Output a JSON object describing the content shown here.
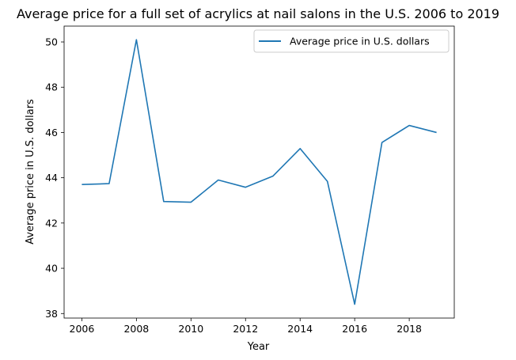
{
  "chart_data": {
    "type": "line",
    "title": "Average price for a full set of acrylics at nail salons in the U.S. 2006 to 2019",
    "xlabel": "Year",
    "ylabel": "Average price in U.S. dollars",
    "x": [
      2006,
      2007,
      2008,
      2009,
      2010,
      2011,
      2012,
      2013,
      2014,
      2015,
      2016,
      2017,
      2018,
      2019
    ],
    "series": [
      {
        "name": "Average price in U.S. dollars",
        "color": "#1f77b4",
        "values": [
          43.7,
          43.74,
          50.1,
          42.95,
          42.92,
          43.9,
          43.58,
          44.07,
          45.29,
          43.84,
          38.41,
          45.56,
          46.31,
          46.0
        ]
      }
    ],
    "xticks": [
      "2006",
      "2008",
      "2010",
      "2012",
      "2014",
      "2016",
      "2018"
    ],
    "yticks": [
      "38",
      "40",
      "42",
      "44",
      "46",
      "48",
      "50"
    ],
    "xlim": [
      2005.35,
      2019.65
    ],
    "ylim": [
      37.8,
      50.7
    ],
    "grid": false,
    "legend_position": "top-right"
  }
}
